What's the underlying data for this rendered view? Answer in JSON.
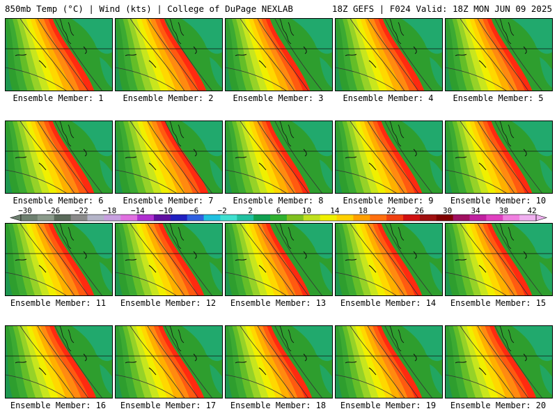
{
  "header": {
    "left": "850mb Temp (°C) | Wind (kts) | College of DuPage NEXLAB",
    "right": "18Z GEFS | F024 Valid: 18Z MON JUN 09 2025"
  },
  "panels": [
    {
      "label": "Ensemble Member: 1",
      "warm": 0.55
    },
    {
      "label": "Ensemble Member: 2",
      "warm": 0.6
    },
    {
      "label": "Ensemble Member: 3",
      "warm": 0.45
    },
    {
      "label": "Ensemble Member: 4",
      "warm": 0.55
    },
    {
      "label": "Ensemble Member: 5",
      "warm": 0.5
    },
    {
      "label": "Ensemble Member: 6",
      "warm": 0.55
    },
    {
      "label": "Ensemble Member: 7",
      "warm": 0.65
    },
    {
      "label": "Ensemble Member: 8",
      "warm": 0.45
    },
    {
      "label": "Ensemble Member: 9",
      "warm": 0.5
    },
    {
      "label": "Ensemble Member: 10",
      "warm": 0.5
    },
    {
      "label": "Ensemble Member: 11",
      "warm": 0.55
    },
    {
      "label": "Ensemble Member: 12",
      "warm": 0.55
    },
    {
      "label": "Ensemble Member: 13",
      "warm": 0.45
    },
    {
      "label": "Ensemble Member: 14",
      "warm": 0.5
    },
    {
      "label": "Ensemble Member: 15",
      "warm": 0.5
    },
    {
      "label": "Ensemble Member: 16",
      "warm": 0.6
    },
    {
      "label": "Ensemble Member: 17",
      "warm": 0.55
    },
    {
      "label": "Ensemble Member: 18",
      "warm": 0.5
    },
    {
      "label": "Ensemble Member: 19",
      "warm": 0.5
    },
    {
      "label": "Ensemble Member: 20",
      "warm": 0.6
    }
  ],
  "colorbar": {
    "labels": [
      "-30",
      "-26",
      "-22",
      "-18",
      "-14",
      "-10",
      "-6",
      "-2",
      "2",
      "6",
      "10",
      "14",
      "18",
      "22",
      "26",
      "30",
      "34",
      "38",
      "42"
    ],
    "colors": [
      "#6e8070",
      "#8a9a8a",
      "#5a6a5a",
      "#8a8a8a",
      "#b4b4c8",
      "#c8a0e0",
      "#e070e0",
      "#b030d0",
      "#6010a0",
      "#2020c0",
      "#3060e0",
      "#20c0e0",
      "#40e0d0",
      "#20c0a0",
      "#10a050",
      "#30b030",
      "#80c020",
      "#c0e020",
      "#f0f000",
      "#ffd000",
      "#ffa000",
      "#ff7010",
      "#f04010",
      "#d01010",
      "#a01010",
      "#800000",
      "#a01060",
      "#c020a0",
      "#e040c0",
      "#f080e0",
      "#f0b0f0"
    ],
    "units": "°C"
  }
}
